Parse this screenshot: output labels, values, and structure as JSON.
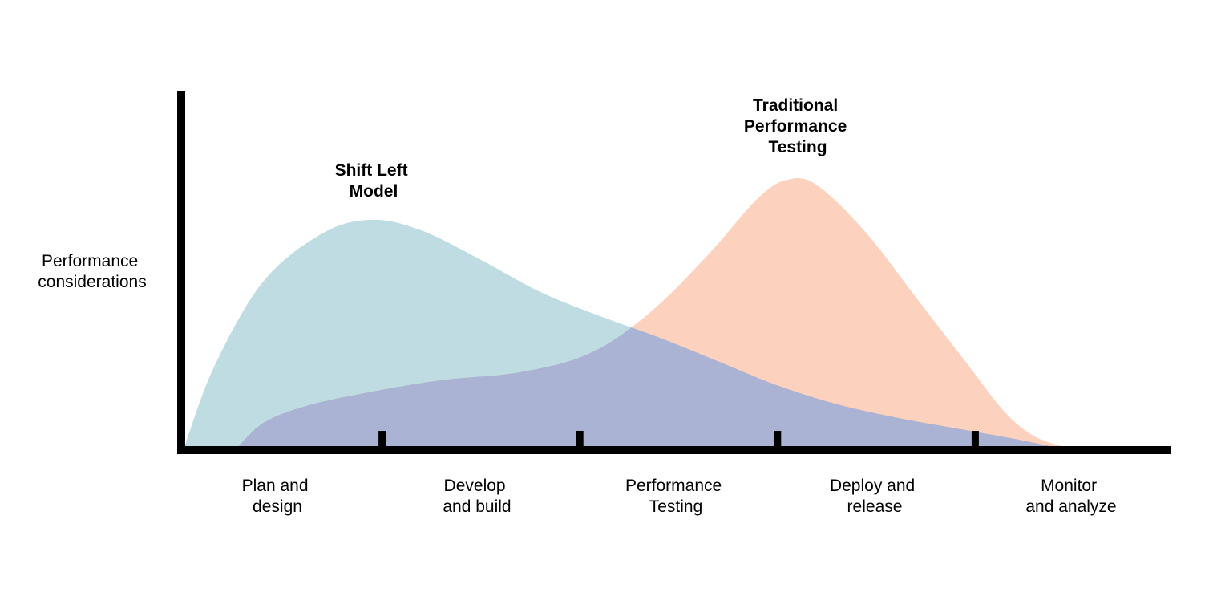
{
  "chart_data": {
    "type": "area",
    "title": "",
    "ylabel": [
      "Performance",
      "considerations"
    ],
    "xlabel": "",
    "xlim": [
      0,
      5
    ],
    "ylim": [
      0,
      1
    ],
    "grid": false,
    "legend": "none",
    "categories": [
      [
        "Plan and",
        "design"
      ],
      [
        "Develop",
        "and build"
      ],
      [
        "Performance",
        "Testing"
      ],
      [
        "Deploy and",
        "release"
      ],
      [
        "Monitor",
        "and analyze"
      ]
    ],
    "series": [
      {
        "name": [
          "Shift Left",
          "Model"
        ],
        "color": "#a6cfd8",
        "x": [
          0,
          0.15,
          0.4,
          0.7,
          0.95,
          1.2,
          1.5,
          1.8,
          2.1,
          2.4,
          2.7,
          3.0,
          3.3,
          3.6,
          3.9,
          4.2,
          4.4
        ],
        "values": [
          0,
          0.3,
          0.62,
          0.8,
          0.85,
          0.81,
          0.7,
          0.58,
          0.49,
          0.41,
          0.32,
          0.23,
          0.16,
          0.11,
          0.07,
          0.03,
          0
        ]
      },
      {
        "name": [
          "Traditional",
          "Performance",
          "Testing"
        ],
        "color": "#fbc4ac",
        "x": [
          0.27,
          0.4,
          0.6,
          0.9,
          1.3,
          1.7,
          2.05,
          2.35,
          2.65,
          2.9,
          3.05,
          3.2,
          3.45,
          3.7,
          3.95,
          4.15,
          4.3,
          4.45
        ],
        "values": [
          0,
          0.09,
          0.15,
          0.2,
          0.25,
          0.28,
          0.35,
          0.5,
          0.72,
          0.93,
          1.0,
          0.98,
          0.8,
          0.56,
          0.32,
          0.13,
          0.04,
          0
        ]
      }
    ]
  }
}
